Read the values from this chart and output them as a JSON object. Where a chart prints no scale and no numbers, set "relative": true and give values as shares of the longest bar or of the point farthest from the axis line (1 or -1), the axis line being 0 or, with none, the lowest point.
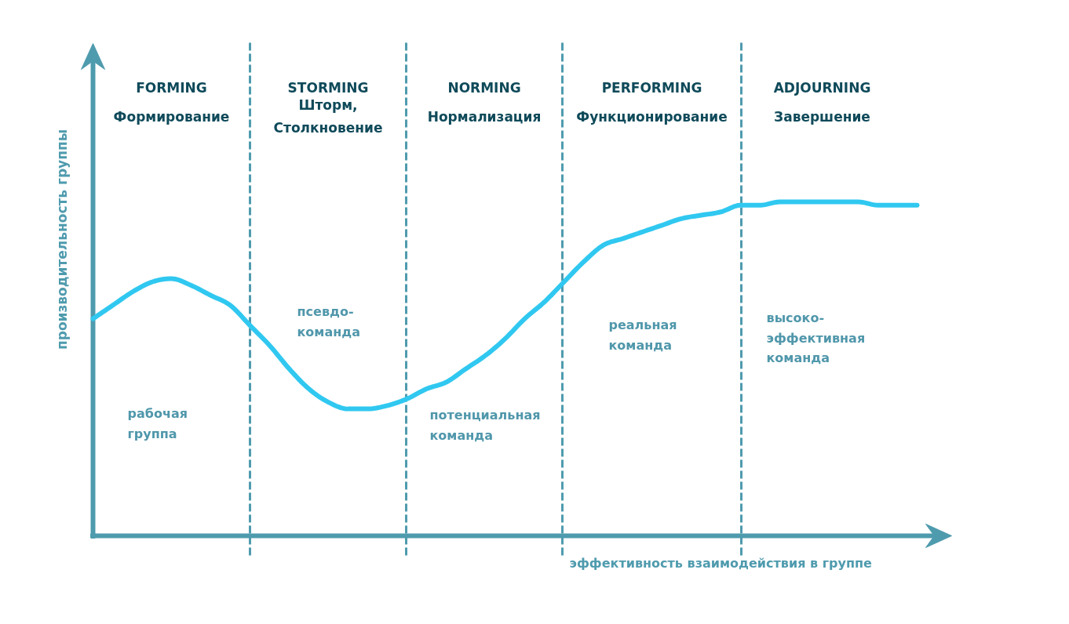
{
  "chart_data": {
    "type": "line",
    "relative": true,
    "grid": "x",
    "xlabel": "эффективность взаимодействия в группе",
    "ylabel": "производительность группы",
    "categories": [
      null,
      null,
      null,
      null,
      null,
      null,
      null,
      null,
      null,
      null,
      null,
      null,
      null,
      null,
      null,
      null,
      null,
      null,
      null,
      null,
      null,
      null,
      null,
      null,
      null,
      null,
      null,
      null,
      null,
      null,
      null,
      null,
      null,
      null,
      null,
      null,
      null,
      null,
      null,
      null,
      null,
      null,
      null
    ],
    "series": [
      {
        "color": "#30c8f0",
        "values": [
          0.65,
          0.69,
          0.73,
          0.76,
          0.77,
          0.75,
          0.72,
          0.69,
          0.63,
          0.57,
          0.5,
          0.44,
          0.4,
          0.38,
          0.38,
          0.39,
          0.41,
          0.44,
          0.46,
          0.5,
          0.54,
          0.59,
          0.65,
          0.7,
          0.76,
          0.82,
          0.87,
          0.89,
          0.91,
          0.93,
          0.95,
          0.96,
          0.97,
          0.99,
          0.99,
          1,
          1,
          1,
          1,
          1,
          0.99,
          0.99,
          0.99
        ]
      }
    ],
    "annotations": [
      "FORMING\nФормирование",
      "STORMING\nШторм,\nСтолкновение",
      "NORMING\nНормализация",
      "PERFORMING\nФункционирование",
      "ADJOURNING\nЗавершение",
      "рабочая\nгруппа",
      "псевдо-\nкоманда",
      "потенциальная\nкоманда",
      "реальная\nкоманда",
      "высоко-\nэффективная\nкоманда"
    ]
  }
}
